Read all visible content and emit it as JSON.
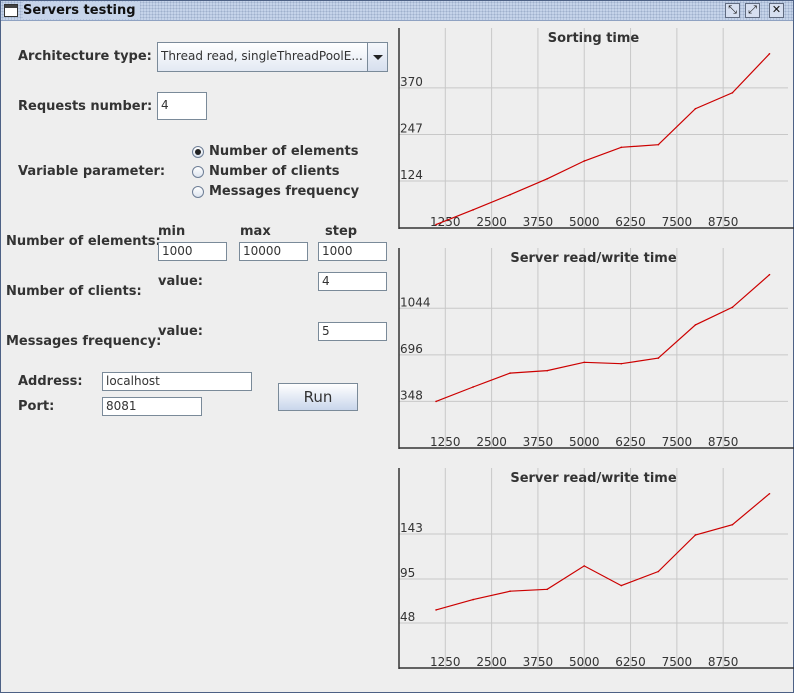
{
  "window": {
    "title": "Servers testing"
  },
  "form": {
    "architecture_label": "Architecture type:",
    "architecture_value": "Thread read, singleThreadPoolE...",
    "requests_label": "Requests number:",
    "requests_value": "4",
    "variable_label": "Variable parameter:",
    "variable_options": [
      "Number of elements",
      "Number of clients",
      "Messages frequency"
    ],
    "variable_selected": "Number of elements",
    "min_header": "min",
    "max_header": "max",
    "step_header": "step",
    "elements_label": "Number of elements:",
    "elements_min": "1000",
    "elements_max": "10000",
    "elements_step": "1000",
    "clients_label": "Number of clients:",
    "clients_value_label": "value:",
    "clients_value": "4",
    "frequency_label": "Messages frequency:",
    "frequency_value_label": "value:",
    "frequency_value": "5",
    "address_label": "Address:",
    "address_value": "localhost",
    "port_label": "Port:",
    "port_value": "8081",
    "run_label": "Run"
  },
  "colors": {
    "line": "#cc0000",
    "grid": "#c8c8c8",
    "axis": "#333333",
    "plot_bg": "#eeeeee"
  },
  "icons": [
    "window-icon",
    "iconify-icon",
    "maximize-icon",
    "close-icon",
    "dropdown-arrow-icon"
  ],
  "chart_data": [
    {
      "type": "line",
      "title": "Sorting time",
      "xlim": [
        0,
        10500
      ],
      "ylim": [
        0,
        470
      ],
      "x_ticks": [
        1250,
        2500,
        3750,
        5000,
        6250,
        7500,
        8750
      ],
      "y_ticks": [
        124,
        247,
        370
      ],
      "grid": true,
      "series": [
        {
          "x": [
            1000,
            2000,
            3000,
            4000,
            5000,
            6000,
            7000,
            8000,
            9000,
            10000
          ],
          "y": [
            9,
            48,
            88,
            130,
            177,
            213,
            220,
            315,
            357,
            460
          ]
        }
      ]
    },
    {
      "type": "line",
      "title": "Server read/write time",
      "xlim": [
        0,
        10500
      ],
      "ylim": [
        0,
        1330
      ],
      "x_ticks": [
        1250,
        2500,
        3750,
        5000,
        6250,
        7500,
        8750
      ],
      "y_ticks": [
        348,
        696,
        1044
      ],
      "grid": true,
      "series": [
        {
          "x": [
            1000,
            2000,
            3000,
            4000,
            5000,
            6000,
            7000,
            8000,
            9000,
            10000
          ],
          "y": [
            348,
            456,
            560,
            578,
            640,
            630,
            672,
            920,
            1051,
            1295
          ]
        }
      ]
    },
    {
      "type": "line",
      "title": "Server read/write time",
      "xlim": [
        0,
        10500
      ],
      "ylim": [
        0,
        190
      ],
      "x_ticks": [
        1250,
        2500,
        3750,
        5000,
        6250,
        7500,
        8750
      ],
      "y_ticks": [
        48,
        95,
        143
      ],
      "grid": true,
      "series": [
        {
          "x": [
            1000,
            2000,
            3000,
            4000,
            5000,
            6000,
            7000,
            8000,
            9000,
            10000
          ],
          "y": [
            62,
            73,
            82,
            84,
            109,
            88,
            103,
            142,
            153,
            186
          ]
        }
      ]
    }
  ]
}
